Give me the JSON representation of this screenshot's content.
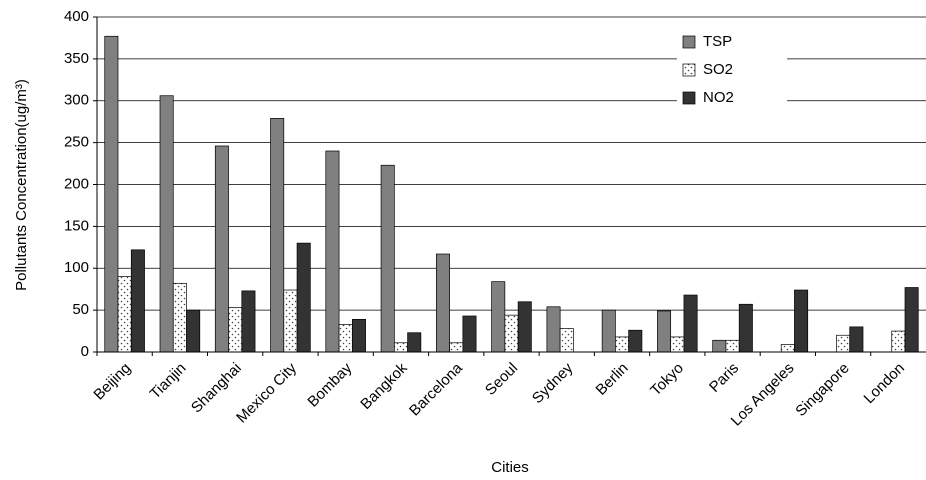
{
  "chart_data": {
    "type": "bar",
    "x_label": "Cities",
    "y_label": "Pollutants Concentration(ug/m³)",
    "categories": [
      "Beijing",
      "Tianjin",
      "Shanghai",
      "Mexico City",
      "Bombay",
      "Bangkok",
      "Barcelona",
      "Seoul",
      "Sydney",
      "Berlin",
      "Tokyo",
      "Paris",
      "Los Angeles",
      "Singapore",
      "London"
    ],
    "series": [
      {
        "name": "TSP",
        "color": "#808080",
        "values": [
          377,
          306,
          246,
          279,
          240,
          223,
          117,
          84,
          54,
          50,
          49,
          14,
          null,
          null,
          null
        ]
      },
      {
        "name": "SO2",
        "color": "#ffffff",
        "pattern": "dots",
        "values": [
          90,
          82,
          53,
          74,
          33,
          11,
          11,
          44,
          28,
          18,
          18,
          14,
          9,
          20,
          25
        ]
      },
      {
        "name": "NO2",
        "color": "#333333",
        "values": [
          122,
          50,
          73,
          130,
          39,
          23,
          43,
          60,
          null,
          26,
          68,
          57,
          74,
          30,
          77
        ]
      }
    ],
    "ylim": [
      0,
      400
    ],
    "yticks": [
      0,
      50,
      100,
      150,
      200,
      250,
      300,
      350,
      400
    ],
    "grid": true,
    "legend": "upper right"
  }
}
